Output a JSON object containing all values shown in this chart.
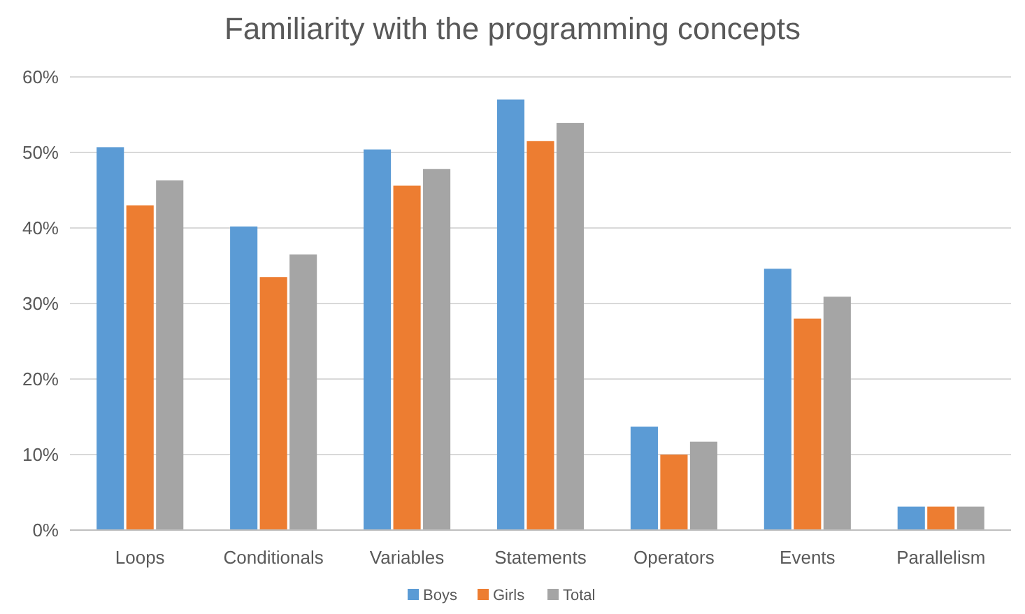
{
  "chart_data": {
    "type": "bar",
    "title": "Familiarity with the programming concepts",
    "categories": [
      "Loops",
      "Conditionals",
      "Variables",
      "Statements",
      "Operators",
      "Events",
      "Parallelism"
    ],
    "series": [
      {
        "name": "Boys",
        "color": "#5b9bd5",
        "values": [
          50.7,
          40.2,
          50.4,
          57.0,
          13.7,
          34.6,
          3.1
        ]
      },
      {
        "name": "Girls",
        "color": "#ed7d31",
        "values": [
          43.0,
          33.5,
          45.6,
          51.5,
          10.0,
          28.0,
          3.1
        ]
      },
      {
        "name": "Total",
        "color": "#a5a5a5",
        "values": [
          46.3,
          36.5,
          47.8,
          53.9,
          11.7,
          30.9,
          3.1
        ]
      }
    ],
    "ylim": [
      0,
      60
    ],
    "yticks": [
      {
        "value": 0,
        "label": "0%"
      },
      {
        "value": 10,
        "label": "10%"
      },
      {
        "value": 20,
        "label": "20%"
      },
      {
        "value": 30,
        "label": "30%"
      },
      {
        "value": 40,
        "label": "40%"
      },
      {
        "value": 50,
        "label": "50%"
      },
      {
        "value": 60,
        "label": "60%"
      }
    ],
    "grid": "y",
    "legend": "bottom"
  }
}
